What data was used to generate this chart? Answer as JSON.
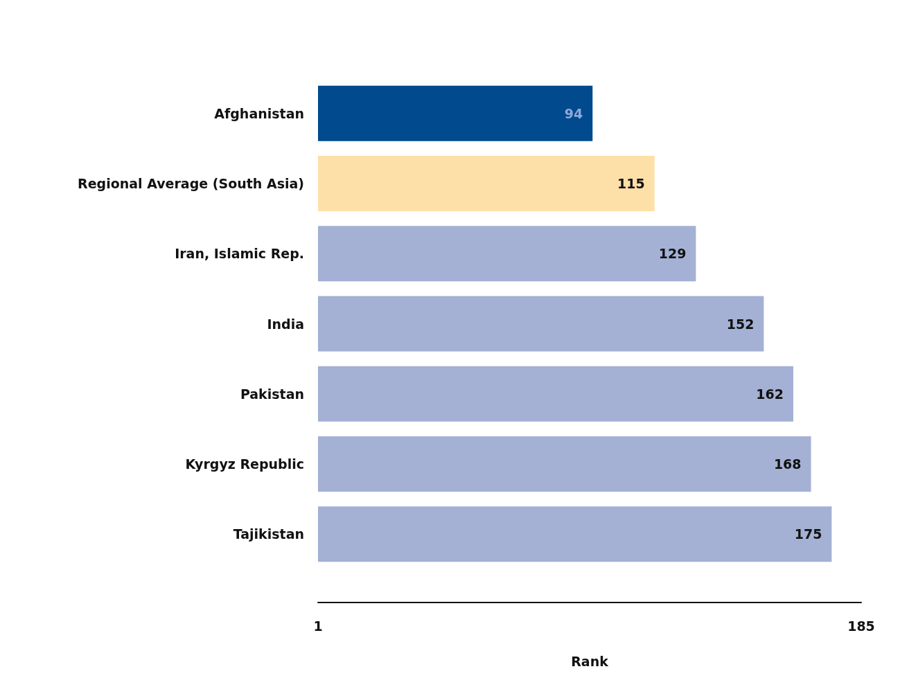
{
  "chart_data": {
    "type": "bar",
    "orientation": "horizontal",
    "xlabel": "Rank",
    "categories": [
      "Afghanistan",
      "Regional Average (South Asia)",
      "Iran, Islamic Rep.",
      "India",
      "Pakistan",
      "Kyrgyz Republic",
      "Tajikistan"
    ],
    "values": [
      94,
      115,
      129,
      152,
      162,
      168,
      175
    ],
    "colors": [
      "#004a8d",
      "#fde0a8",
      "#a4b1d4",
      "#a4b1d4",
      "#a4b1d4",
      "#a4b1d4",
      "#a4b1d4"
    ],
    "xlim": [
      1,
      185
    ],
    "xticks": [
      1,
      185
    ],
    "data_labels": true
  }
}
